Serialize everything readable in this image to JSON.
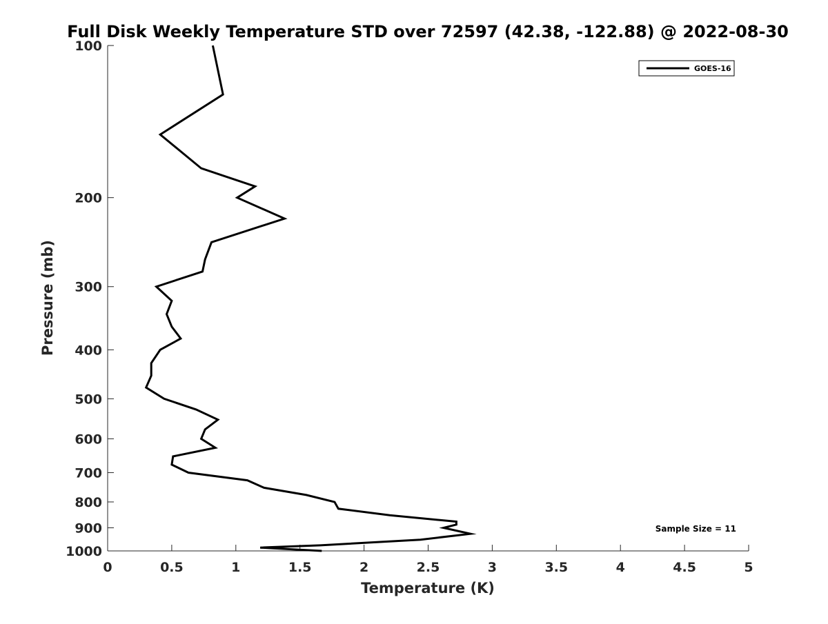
{
  "chart_data": {
    "type": "line",
    "title": "Full Disk Weekly Temperature STD over 72597 (42.38, -122.88) @ 2022-08-30",
    "xlabel": "Temperature (K)",
    "ylabel": "Pressure (mb)",
    "xlim": [
      0,
      5
    ],
    "ylim": [
      100,
      1000
    ],
    "y_scale": "log",
    "y_reversed": true,
    "x_ticks": [
      0,
      0.5,
      1,
      1.5,
      2,
      2.5,
      3,
      3.5,
      4,
      4.5,
      5
    ],
    "x_tick_labels": [
      "0",
      "0.5",
      "1",
      "1.5",
      "2",
      "2.5",
      "3",
      "3.5",
      "4",
      "4.5",
      "5"
    ],
    "y_ticks": [
      100,
      200,
      300,
      400,
      500,
      600,
      700,
      800,
      900,
      1000
    ],
    "y_tick_labels": [
      "100",
      "200",
      "300",
      "400",
      "500",
      "600",
      "700",
      "800",
      "900",
      "1000"
    ],
    "grid": false,
    "legend_position": "top-right",
    "annotation": "Sample Size = 11",
    "series": [
      {
        "name": "GOES-16",
        "color": "#000000",
        "x": [
          0.82,
          0.9,
          0.41,
          0.73,
          1.15,
          1.01,
          1.38,
          0.81,
          0.76,
          0.74,
          0.38,
          0.5,
          0.46,
          0.5,
          0.57,
          0.41,
          0.34,
          0.34,
          0.3,
          0.44,
          0.69,
          0.86,
          0.76,
          0.73,
          0.84,
          0.51,
          0.5,
          0.63,
          1.09,
          1.22,
          1.55,
          1.77,
          1.8,
          2.2,
          2.72,
          2.72,
          2.62,
          2.83,
          2.44,
          1.66,
          1.19,
          1.67
        ],
        "y": [
          100,
          125,
          150,
          175,
          190,
          200,
          220,
          245,
          265,
          280,
          300,
          320,
          340,
          360,
          380,
          400,
          425,
          450,
          475,
          500,
          525,
          550,
          575,
          600,
          625,
          650,
          675,
          700,
          725,
          750,
          775,
          800,
          825,
          850,
          875,
          887,
          900,
          925,
          950,
          975,
          985,
          1000
        ]
      }
    ]
  }
}
